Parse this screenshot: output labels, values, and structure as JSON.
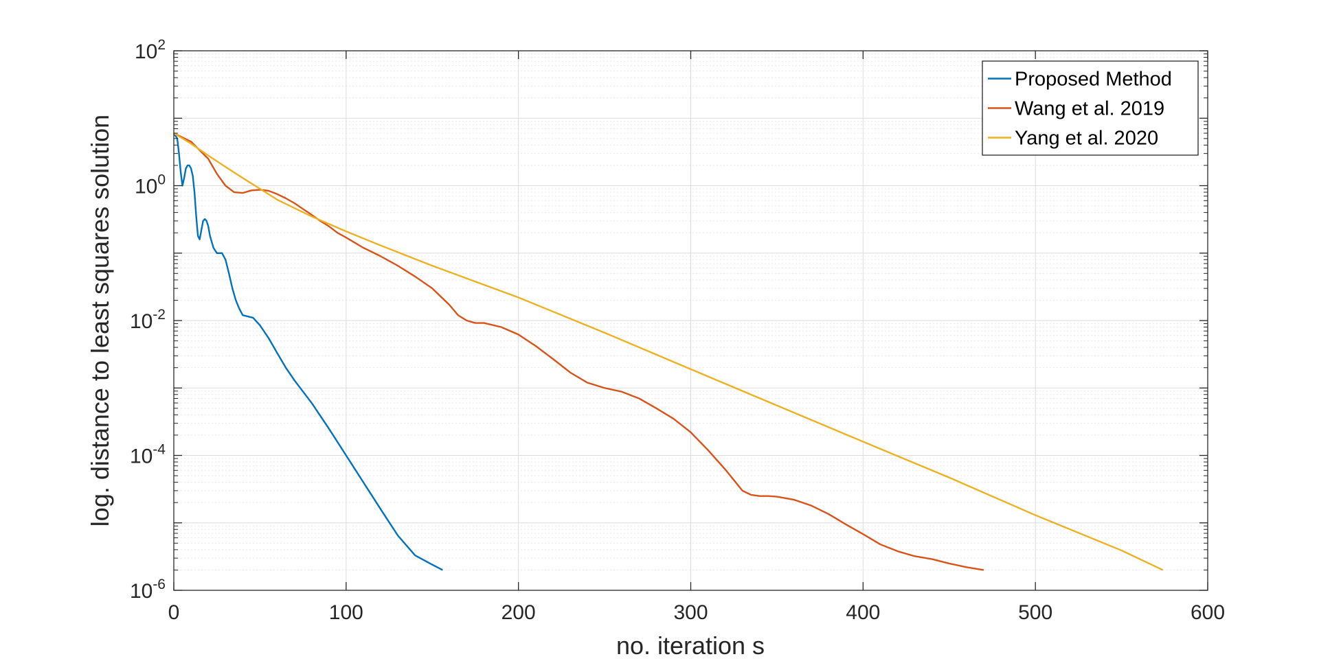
{
  "chart_data": {
    "type": "line",
    "title": "",
    "xlabel": "no. iteration s",
    "ylabel": "log. distance to least squares solution",
    "xlim": [
      0,
      600
    ],
    "ylim": [
      1e-06,
      100
    ],
    "yscale": "log",
    "grid": true,
    "minor_grid": true,
    "legend_position": "top-right",
    "x_ticks": [
      "0",
      "100",
      "200",
      "300",
      "400",
      "500",
      "600"
    ],
    "y_ticks": [
      {
        "base": "10",
        "exp": "-6"
      },
      {
        "base": "10",
        "exp": "-4"
      },
      {
        "base": "10",
        "exp": "-2"
      },
      {
        "base": "10",
        "exp": "0"
      },
      {
        "base": "10",
        "exp": "2"
      }
    ],
    "series": [
      {
        "name": "Proposed Method",
        "color": "#0072BD",
        "points": [
          [
            0,
            6.0
          ],
          [
            2,
            5.0
          ],
          [
            3,
            3.0
          ],
          [
            4,
            1.6
          ],
          [
            5,
            1.0
          ],
          [
            6,
            1.3
          ],
          [
            7,
            1.8
          ],
          [
            8,
            2.0
          ],
          [
            9,
            2.0
          ],
          [
            10,
            1.8
          ],
          [
            11,
            1.4
          ],
          [
            12,
            0.8
          ],
          [
            13,
            0.35
          ],
          [
            14,
            0.18
          ],
          [
            15,
            0.16
          ],
          [
            16,
            0.22
          ],
          [
            17,
            0.3
          ],
          [
            18,
            0.32
          ],
          [
            19,
            0.3
          ],
          [
            20,
            0.25
          ],
          [
            21,
            0.18
          ],
          [
            23,
            0.12
          ],
          [
            25,
            0.1
          ],
          [
            28,
            0.1
          ],
          [
            30,
            0.08
          ],
          [
            32,
            0.05
          ],
          [
            34,
            0.03
          ],
          [
            36,
            0.02
          ],
          [
            38,
            0.015
          ],
          [
            40,
            0.012
          ],
          [
            43,
            0.0115
          ],
          [
            46,
            0.011
          ],
          [
            50,
            0.0085
          ],
          [
            55,
            0.0055
          ],
          [
            60,
            0.0033
          ],
          [
            65,
            0.002
          ],
          [
            70,
            0.0013
          ],
          [
            80,
            0.0006
          ],
          [
            90,
            0.00025
          ],
          [
            100,
            0.0001
          ],
          [
            110,
            4e-05
          ],
          [
            120,
            1.6e-05
          ],
          [
            130,
            6.5e-06
          ],
          [
            140,
            3.3e-06
          ],
          [
            150,
            2.4e-06
          ],
          [
            156,
            2e-06
          ]
        ]
      },
      {
        "name": "Wang et al. 2019",
        "color": "#D95319",
        "points": [
          [
            0,
            6.0
          ],
          [
            10,
            4.5
          ],
          [
            20,
            2.5
          ],
          [
            25,
            1.5
          ],
          [
            30,
            1.0
          ],
          [
            35,
            0.8
          ],
          [
            40,
            0.78
          ],
          [
            45,
            0.85
          ],
          [
            50,
            0.87
          ],
          [
            55,
            0.84
          ],
          [
            60,
            0.75
          ],
          [
            65,
            0.65
          ],
          [
            70,
            0.55
          ],
          [
            75,
            0.45
          ],
          [
            80,
            0.37
          ],
          [
            85,
            0.3
          ],
          [
            90,
            0.25
          ],
          [
            95,
            0.2
          ],
          [
            100,
            0.17
          ],
          [
            110,
            0.12
          ],
          [
            120,
            0.09
          ],
          [
            130,
            0.065
          ],
          [
            140,
            0.045
          ],
          [
            150,
            0.03
          ],
          [
            160,
            0.017
          ],
          [
            165,
            0.012
          ],
          [
            170,
            0.01
          ],
          [
            175,
            0.0092
          ],
          [
            180,
            0.0092
          ],
          [
            190,
            0.008
          ],
          [
            200,
            0.0062
          ],
          [
            210,
            0.0042
          ],
          [
            220,
            0.0027
          ],
          [
            230,
            0.0017
          ],
          [
            240,
            0.0012
          ],
          [
            250,
            0.001
          ],
          [
            260,
            0.00088
          ],
          [
            270,
            0.0007
          ],
          [
            280,
            0.0005
          ],
          [
            290,
            0.00035
          ],
          [
            300,
            0.00022
          ],
          [
            310,
            0.00012
          ],
          [
            320,
            6.2e-05
          ],
          [
            330,
            3e-05
          ],
          [
            335,
            2.6e-05
          ],
          [
            340,
            2.5e-05
          ],
          [
            345,
            2.5e-05
          ],
          [
            350,
            2.45e-05
          ],
          [
            360,
            2.2e-05
          ],
          [
            370,
            1.8e-05
          ],
          [
            380,
            1.35e-05
          ],
          [
            390,
            9.5e-06
          ],
          [
            400,
            6.8e-06
          ],
          [
            410,
            4.8e-06
          ],
          [
            420,
            3.8e-06
          ],
          [
            430,
            3.2e-06
          ],
          [
            440,
            2.9e-06
          ],
          [
            450,
            2.5e-06
          ],
          [
            460,
            2.2e-06
          ],
          [
            470,
            2e-06
          ]
        ]
      },
      {
        "name": "Yang et al. 2020",
        "color": "#EDB120",
        "points": [
          [
            0,
            6.0
          ],
          [
            10,
            4.2
          ],
          [
            20,
            2.8
          ],
          [
            30,
            1.9
          ],
          [
            40,
            1.3
          ],
          [
            50,
            0.9
          ],
          [
            60,
            0.62
          ],
          [
            80,
            0.35
          ],
          [
            100,
            0.21
          ],
          [
            120,
            0.13
          ],
          [
            150,
            0.065
          ],
          [
            200,
            0.022
          ],
          [
            250,
            0.0066
          ],
          [
            300,
            0.0019
          ],
          [
            350,
            0.00055
          ],
          [
            400,
            0.00016
          ],
          [
            450,
            4.7e-05
          ],
          [
            500,
            1.3e-05
          ],
          [
            550,
            3.9e-06
          ],
          [
            574,
            2e-06
          ]
        ]
      }
    ]
  }
}
